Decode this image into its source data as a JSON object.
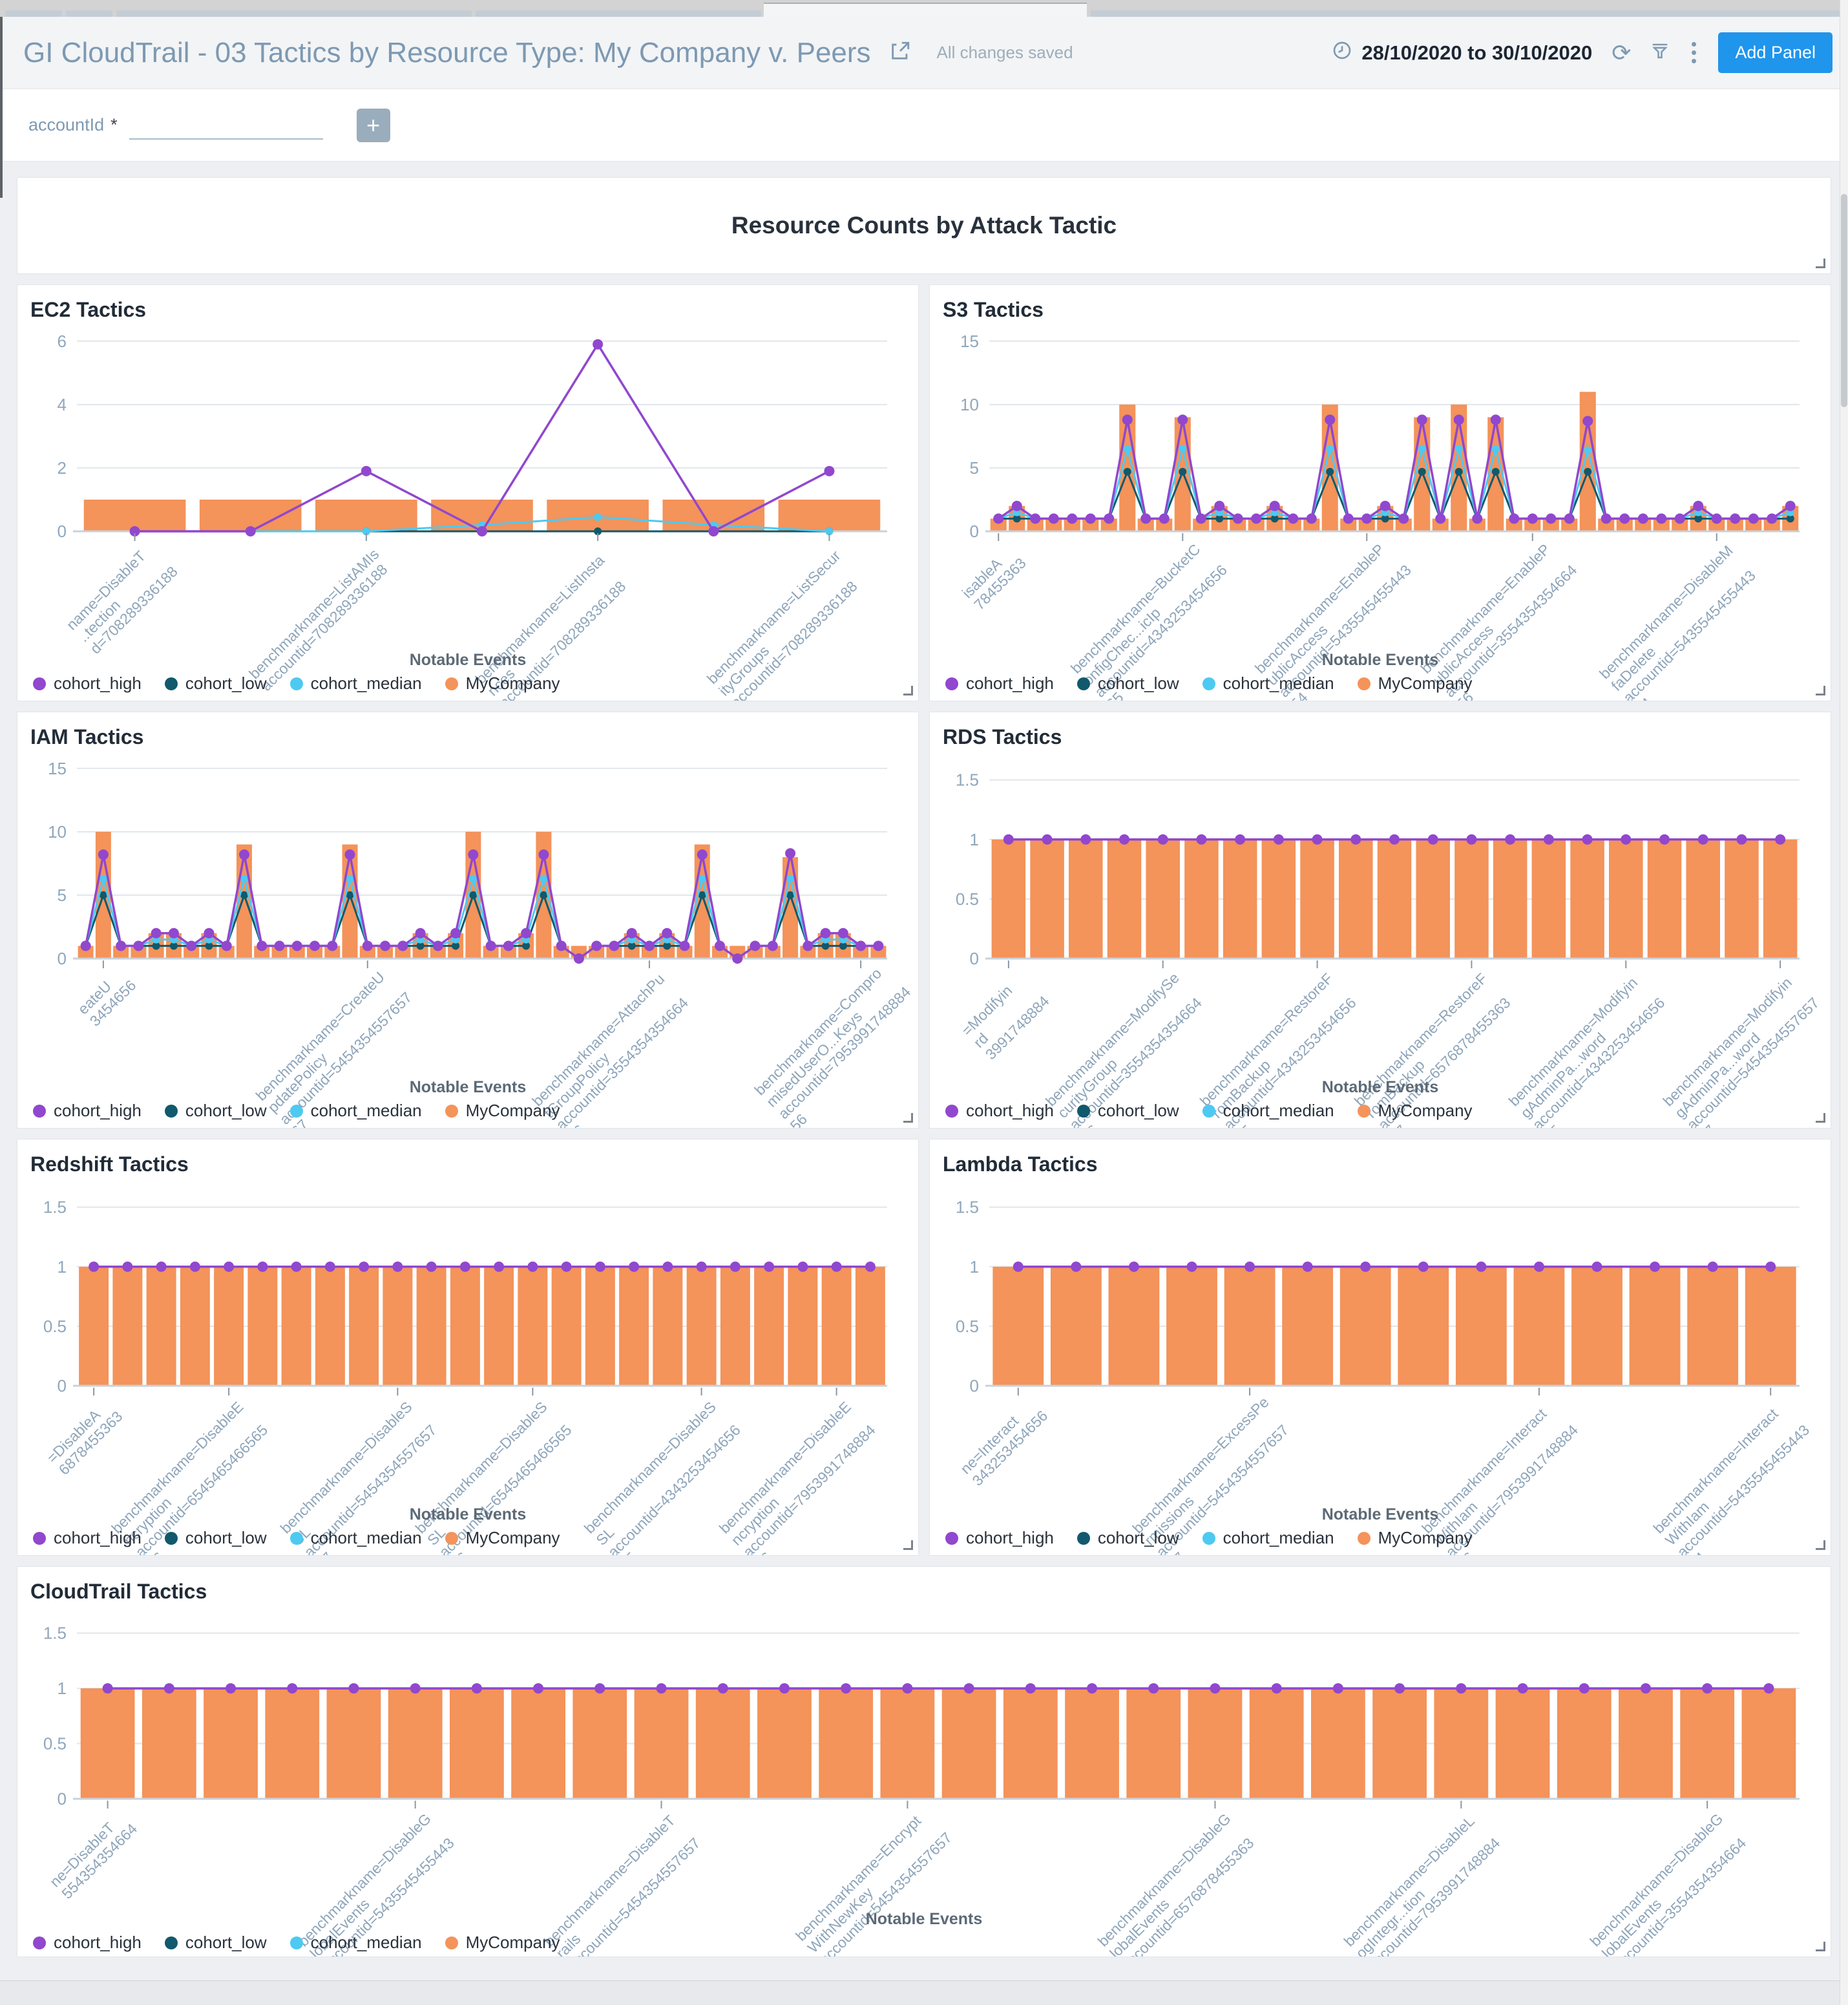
{
  "header": {
    "title": "GI CloudTrail - 03 Tactics by Resource Type: My Company v. Peers",
    "save_status": "All changes saved",
    "date_range": "28/10/2020 to 30/10/2020",
    "add_panel_label": "Add Panel",
    "icons": {
      "refresh": "⟳",
      "more": "⋮"
    }
  },
  "filter_bar": {
    "label": "accountId",
    "required_marker": "*",
    "input_value": "",
    "add_button": "+"
  },
  "overview": {
    "title": "Resource Counts by Attack Tactic"
  },
  "axis": {
    "xlabel": "Notable Events"
  },
  "legend": {
    "items": [
      {
        "label": "cohort_high",
        "color": "#9147ce"
      },
      {
        "label": "cohort_low",
        "color": "#11596c"
      },
      {
        "label": "cohort_median",
        "color": "#4ec9f2"
      },
      {
        "label": "MyCompany",
        "color": "#f4935a"
      }
    ]
  },
  "colors": {
    "bar": "#f4935a",
    "high": "#9147ce",
    "low": "#11596c",
    "median": "#4ec9f2",
    "grid": "#e0e6eb",
    "baseline": "#c9d2da",
    "ytick_text": "#90a7bc",
    "xlabel_text": "#8ea5ba",
    "tick_mark": "#8a98a5"
  },
  "chart_data": [
    {
      "id": "ec2",
      "type": "bar",
      "title": "EC2 Tactics",
      "full_width": false,
      "ymax": 6.2,
      "yticks": [
        0,
        2,
        4,
        6
      ],
      "bars": [
        1,
        1,
        1,
        1,
        1,
        1,
        1
      ],
      "high": [
        0,
        0,
        1.9,
        0,
        5.9,
        0,
        1.9
      ],
      "median": [
        0,
        0,
        0,
        0.2,
        0.45,
        0.2,
        0
      ],
      "low": [
        0,
        0,
        0,
        0,
        0,
        0,
        0
      ],
      "xticks": [
        {
          "i": 0,
          "lines": [
            "name=DisableT",
            "..tection",
            "d=708289336188"
          ]
        },
        {
          "i": 2,
          "lines": [
            "benchmarkname=ListAMIs",
            "accountid=708289336188"
          ]
        },
        {
          "i": 4,
          "lines": [
            "benchmarkname=ListInsta",
            "nces",
            "accountid=708289336188"
          ]
        },
        {
          "i": 6,
          "lines": [
            "benchmarkname=ListSecur",
            "ityGroups",
            "accountid=708289336188"
          ]
        }
      ]
    },
    {
      "id": "s3",
      "type": "bar",
      "title": "S3 Tactics",
      "full_width": false,
      "ymax": 15.5,
      "yticks": [
        0,
        5,
        10,
        15
      ],
      "bars": [
        1,
        2,
        1,
        1,
        1,
        1,
        1,
        10,
        1,
        1,
        9,
        1,
        2,
        1,
        1,
        2,
        1,
        1,
        10,
        1,
        1,
        2,
        1,
        9,
        1,
        10,
        1,
        9,
        1,
        1,
        1,
        1,
        11,
        1,
        1,
        1,
        1,
        1,
        2,
        1,
        1,
        1,
        1,
        2
      ],
      "high": [
        1,
        2,
        1,
        1,
        1,
        1,
        1,
        8.8,
        1,
        1,
        8.8,
        1,
        2,
        1,
        1,
        2,
        1,
        1,
        8.8,
        1,
        1,
        2,
        1,
        8.8,
        1,
        8.8,
        1,
        8.8,
        1,
        1,
        1,
        1,
        8.7,
        1,
        1,
        1,
        1,
        1,
        2,
        1,
        1,
        1,
        1,
        2
      ],
      "median": [
        1,
        1.5,
        1,
        1,
        1,
        1,
        1,
        6.5,
        1,
        1,
        6.5,
        1,
        1.5,
        1,
        1,
        1.5,
        1,
        1,
        6.5,
        1,
        1,
        1.5,
        1,
        6.5,
        1,
        6.5,
        1,
        6.5,
        1,
        1,
        1,
        1,
        6.4,
        1,
        1,
        1,
        1,
        1,
        1.5,
        1,
        1,
        1,
        1,
        1.5
      ],
      "low": [
        1,
        1,
        1,
        1,
        1,
        1,
        1,
        4.7,
        1,
        1,
        4.7,
        1,
        1,
        1,
        1,
        1,
        1,
        1,
        4.7,
        1,
        1,
        1,
        1,
        4.7,
        1,
        4.7,
        1,
        4.7,
        1,
        1,
        1,
        1,
        4.7,
        1,
        1,
        1,
        1,
        1,
        1,
        1,
        1,
        1,
        1,
        1
      ],
      "xticks": [
        {
          "i": 0,
          "lines": [
            "isableA",
            "78455363"
          ]
        },
        {
          "i": 10,
          "lines": [
            "benchmarkname=BucketC",
            "onfigChec...icIp",
            "accountid=4343253454656",
            "65"
          ]
        },
        {
          "i": 20,
          "lines": [
            "benchmarkname=EnableP",
            "ublicAccess",
            "accountid=5435545455443",
            "54"
          ]
        },
        {
          "i": 29,
          "lines": [
            "benchmarkname=EnableP",
            "ublicAccess",
            "accountid=3554354354664",
            "56"
          ]
        },
        {
          "i": 39,
          "lines": [
            "benchmarkname=DisableM",
            "faDelete",
            "accountid=5435545455443",
            "54"
          ]
        }
      ]
    },
    {
      "id": "iam",
      "type": "bar",
      "title": "IAM Tactics",
      "full_width": false,
      "ymax": 15.5,
      "yticks": [
        0,
        5,
        10,
        15
      ],
      "bars": [
        1,
        10,
        1,
        1,
        2,
        2,
        1,
        2,
        1,
        9,
        1,
        1,
        1,
        1,
        1,
        9,
        1,
        1,
        1,
        2,
        1,
        2,
        10,
        1,
        1,
        2,
        10,
        1,
        1,
        1,
        1,
        2,
        1,
        2,
        1,
        9,
        1,
        1,
        1,
        1,
        8,
        1,
        2,
        2,
        1,
        1
      ],
      "high": [
        1,
        8.2,
        1,
        1,
        2,
        2,
        1,
        2,
        1,
        8.2,
        1,
        1,
        1,
        1,
        1,
        8.2,
        1,
        1,
        1,
        2,
        1,
        2,
        8.2,
        1,
        1,
        2,
        8.2,
        1,
        0,
        1,
        1,
        2,
        1,
        2,
        1,
        8.2,
        1,
        0,
        1,
        1,
        8.3,
        1,
        2,
        2,
        1,
        1
      ],
      "median": [
        1,
        6.3,
        1,
        1,
        1.5,
        1.5,
        1,
        1.5,
        1,
        6.3,
        1,
        1,
        1,
        1,
        1,
        6.3,
        1,
        1,
        1,
        1.5,
        1,
        1.5,
        6.3,
        1,
        1,
        1.5,
        6.3,
        1,
        0,
        1,
        1,
        1.5,
        1,
        1.5,
        1,
        6.3,
        1,
        0,
        1,
        1,
        6.3,
        1,
        1.5,
        1.5,
        1,
        1
      ],
      "low": [
        1,
        5,
        1,
        1,
        1,
        1,
        1,
        1,
        1,
        5,
        1,
        1,
        1,
        1,
        1,
        5,
        1,
        1,
        1,
        1,
        1,
        1,
        5,
        1,
        1,
        1,
        5,
        1,
        0,
        1,
        1,
        1,
        1,
        1,
        1,
        5,
        1,
        0,
        1,
        1,
        5,
        1,
        1,
        1,
        1,
        1
      ],
      "xticks": [
        {
          "i": 1,
          "lines": [
            "eateU",
            "3454656"
          ]
        },
        {
          "i": 16,
          "lines": [
            "benchmarkname=CreateU",
            "pdatePolicy",
            "accountid=5454354557657",
            "67"
          ]
        },
        {
          "i": 32,
          "lines": [
            "benchmarkname=AttachPu",
            "tGroupPolicy",
            "accountid=3554354354664",
            "56"
          ]
        },
        {
          "i": 44,
          "lines": [
            "benchmarkname=Compro",
            "misedUserO...Keys",
            "accountid=7953991748884",
            "56"
          ]
        }
      ]
    },
    {
      "id": "rds",
      "type": "bar",
      "title": "RDS Tactics",
      "full_width": false,
      "ymax": 1.65,
      "yticks": [
        0,
        0.5,
        1,
        1.5
      ],
      "bars": [
        1,
        1,
        1,
        1,
        1,
        1,
        1,
        1,
        1,
        1,
        1,
        1,
        1,
        1,
        1,
        1,
        1,
        1,
        1,
        1,
        1
      ],
      "high": [
        1,
        1,
        1,
        1,
        1,
        1,
        1,
        1,
        1,
        1,
        1,
        1,
        1,
        1,
        1,
        1,
        1,
        1,
        1,
        1,
        1
      ],
      "median": [
        1,
        1,
        1,
        1,
        1,
        1,
        1,
        1,
        1,
        1,
        1,
        1,
        1,
        1,
        1,
        1,
        1,
        1,
        1,
        1,
        1
      ],
      "low": [
        1,
        1,
        1,
        1,
        1,
        1,
        1,
        1,
        1,
        1,
        1,
        1,
        1,
        1,
        1,
        1,
        1,
        1,
        1,
        1,
        1
      ],
      "xticks": [
        {
          "i": 0,
          "lines": [
            "=Modifyin",
            "rd",
            "3991748884"
          ]
        },
        {
          "i": 4,
          "lines": [
            "benchmarkname=ModifySe",
            "curityGroup",
            "accountid=3554354354664",
            "56"
          ]
        },
        {
          "i": 8,
          "lines": [
            "benchmarkname=RestoreF",
            "romBackup",
            "accountid=4343253454656",
            "65"
          ]
        },
        {
          "i": 12,
          "lines": [
            "benchmarkname=RestoreF",
            "romBackup",
            "accountid=6576878455363",
            "47"
          ]
        },
        {
          "i": 16,
          "lines": [
            "benchmarkname=Modifyin",
            "gAdminPa...word",
            "accountid=4343253454656",
            "65"
          ]
        },
        {
          "i": 20,
          "lines": [
            "benchmarkname=Modifyin",
            "gAdminPa...word",
            "accountid=5454354557657",
            "67"
          ]
        }
      ]
    },
    {
      "id": "redshift",
      "type": "bar",
      "title": "Redshift Tactics",
      "full_width": false,
      "ymax": 1.65,
      "yticks": [
        0,
        0.5,
        1,
        1.5
      ],
      "bars": [
        1,
        1,
        1,
        1,
        1,
        1,
        1,
        1,
        1,
        1,
        1,
        1,
        1,
        1,
        1,
        1,
        1,
        1,
        1,
        1,
        1,
        1,
        1,
        1
      ],
      "high": [
        1,
        1,
        1,
        1,
        1,
        1,
        1,
        1,
        1,
        1,
        1,
        1,
        1,
        1,
        1,
        1,
        1,
        1,
        1,
        1,
        1,
        1,
        1,
        1
      ],
      "median": [
        1,
        1,
        1,
        1,
        1,
        1,
        1,
        1,
        1,
        1,
        1,
        1,
        1,
        1,
        1,
        1,
        1,
        1,
        1,
        1,
        1,
        1,
        1,
        1
      ],
      "low": [
        1,
        1,
        1,
        1,
        1,
        1,
        1,
        1,
        1,
        1,
        1,
        1,
        1,
        1,
        1,
        1,
        1,
        1,
        1,
        1,
        1,
        1,
        1,
        1
      ],
      "xticks": [
        {
          "i": 0,
          "lines": [
            "=DisableA",
            "6878455363"
          ]
        },
        {
          "i": 4,
          "lines": [
            "benchmarkname=DisableE",
            "ncryption",
            "accountid=6545465466565",
            "46"
          ]
        },
        {
          "i": 9,
          "lines": [
            "benchmarkname=DisableS",
            "SL",
            "accountid=5454354557657",
            "67"
          ]
        },
        {
          "i": 13,
          "lines": [
            "benchmarkname=DisableS",
            "SL",
            "accountid=6545465466565",
            "46"
          ]
        },
        {
          "i": 18,
          "lines": [
            "benchmarkname=DisableS",
            "SL",
            "accountid=4343253454656",
            "65"
          ]
        },
        {
          "i": 22,
          "lines": [
            "benchmarkname=DisableE",
            "ncryption",
            "accountid=7953991748884",
            "56"
          ]
        }
      ]
    },
    {
      "id": "lambda",
      "type": "bar",
      "title": "Lambda Tactics",
      "full_width": false,
      "ymax": 1.65,
      "yticks": [
        0,
        0.5,
        1,
        1.5
      ],
      "bars": [
        1,
        1,
        1,
        1,
        1,
        1,
        1,
        1,
        1,
        1,
        1,
        1,
        1,
        1
      ],
      "high": [
        1,
        1,
        1,
        1,
        1,
        1,
        1,
        1,
        1,
        1,
        1,
        1,
        1,
        1
      ],
      "median": [
        1,
        1,
        1,
        1,
        1,
        1,
        1,
        1,
        1,
        1,
        1,
        1,
        1,
        1
      ],
      "low": [
        1,
        1,
        1,
        1,
        1,
        1,
        1,
        1,
        1,
        1,
        1,
        1,
        1,
        1
      ],
      "xticks": [
        {
          "i": 0,
          "lines": [
            "ne=Interact",
            "343253454656"
          ]
        },
        {
          "i": 4,
          "lines": [
            "benchmarkname=ExcessPe",
            "rmissions",
            "accountid=5454354557657",
            "67"
          ]
        },
        {
          "i": 9,
          "lines": [
            "benchmarkname=Interact",
            "WithIam",
            "accountid=7953991748884",
            "56"
          ]
        },
        {
          "i": 13,
          "lines": [
            "benchmarkname=Interact",
            "WithIam",
            "accountid=5435545455443",
            "54"
          ]
        }
      ]
    },
    {
      "id": "cloudtrail",
      "type": "bar",
      "title": "CloudTrail Tactics",
      "full_width": true,
      "ymax": 1.65,
      "yticks": [
        0,
        0.5,
        1,
        1.5
      ],
      "bars": [
        1,
        1,
        1,
        1,
        1,
        1,
        1,
        1,
        1,
        1,
        1,
        1,
        1,
        1,
        1,
        1,
        1,
        1,
        1,
        1,
        1,
        1,
        1,
        1,
        1,
        1,
        1,
        1
      ],
      "high": [
        1,
        1,
        1,
        1,
        1,
        1,
        1,
        1,
        1,
        1,
        1,
        1,
        1,
        1,
        1,
        1,
        1,
        1,
        1,
        1,
        1,
        1,
        1,
        1,
        1,
        1,
        1,
        1
      ],
      "median": [
        1,
        1,
        1,
        1,
        1,
        1,
        1,
        1,
        1,
        1,
        1,
        1,
        1,
        1,
        1,
        1,
        1,
        1,
        1,
        1,
        1,
        1,
        1,
        1,
        1,
        1,
        1,
        1
      ],
      "low": [
        1,
        1,
        1,
        1,
        1,
        1,
        1,
        1,
        1,
        1,
        1,
        1,
        1,
        1,
        1,
        1,
        1,
        1,
        1,
        1,
        1,
        1,
        1,
        1,
        1,
        1,
        1,
        1
      ],
      "xticks": [
        {
          "i": 0,
          "lines": [
            "ne=DisableT",
            "554354354664"
          ]
        },
        {
          "i": 5,
          "lines": [
            "benchmarkname=DisableG",
            "lobalEvents",
            "accountid=5435545455443",
            "54"
          ]
        },
        {
          "i": 9,
          "lines": [
            "benchmarkname=DisableT",
            "rails",
            "accountid=5454354557657",
            "67"
          ]
        },
        {
          "i": 13,
          "lines": [
            "benchmarkname=Encrypt",
            "WithNewKey",
            "accountid=5454354557657",
            "67"
          ]
        },
        {
          "i": 18,
          "lines": [
            "benchmarkname=DisableG",
            "lobalEvents",
            "accountid=6576878455363",
            "47"
          ]
        },
        {
          "i": 22,
          "lines": [
            "benchmarkname=DisableL",
            "ogIntegr...tion",
            "accountid=7953991748884",
            "56"
          ]
        },
        {
          "i": 26,
          "lines": [
            "benchmarkname=DisableG",
            "lobalEvents",
            "accountid=3554354354664",
            "56"
          ]
        }
      ]
    }
  ]
}
